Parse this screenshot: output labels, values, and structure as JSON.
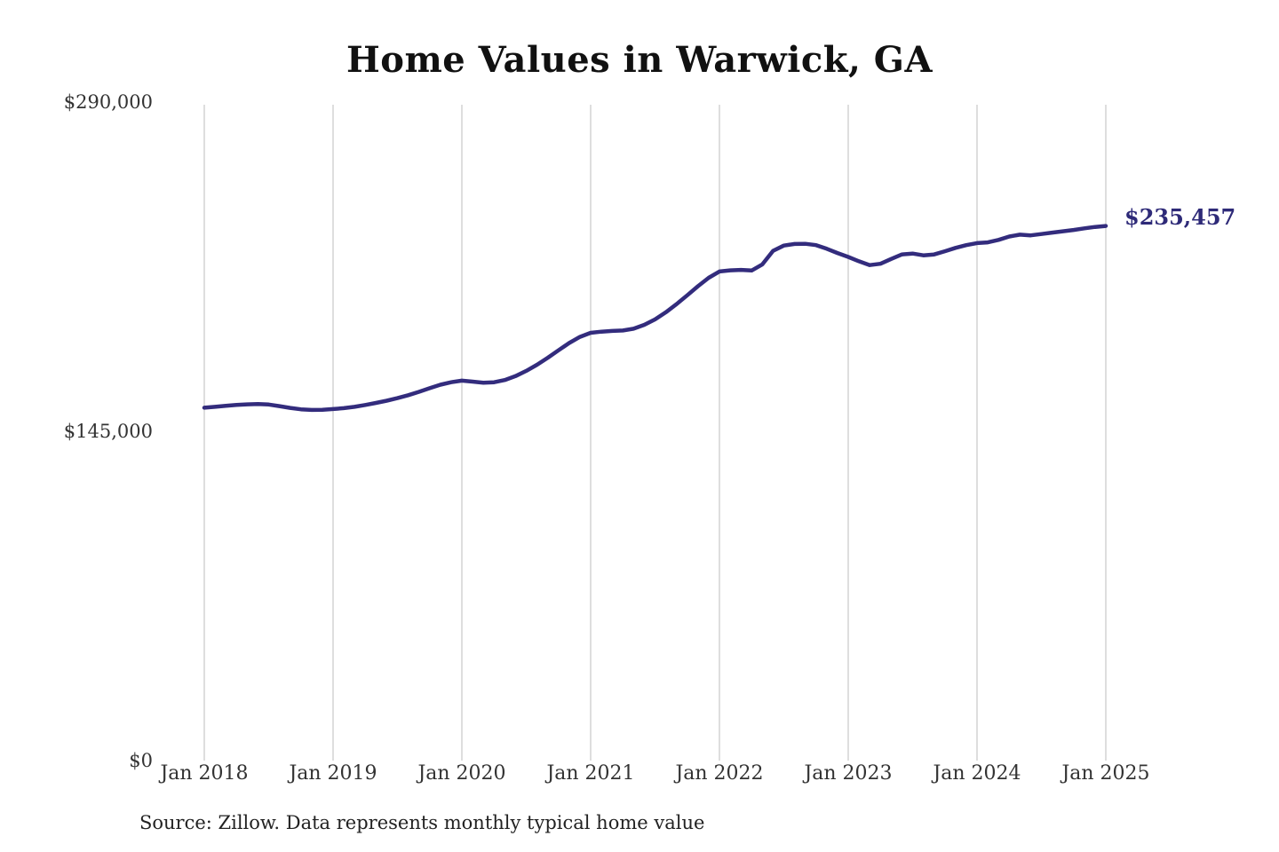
{
  "chart_data": {
    "type": "line",
    "title": "Home Values in Warwick, GA",
    "end_label": "$235,457",
    "latest_value": 235457,
    "source": "Source: Zillow. Data represents monthly typical home value",
    "x_tick_labels": [
      "Jan 2018",
      "Jan 2019",
      "Jan 2020",
      "Jan 2021",
      "Jan 2022",
      "Jan 2023",
      "Jan 2024",
      "Jan 2025"
    ],
    "y_ticks": [
      {
        "value": 0,
        "label": "$0"
      },
      {
        "value": 145000,
        "label": "$145,000"
      },
      {
        "value": 290000,
        "label": "$290,000"
      }
    ],
    "ylim": [
      0,
      290000
    ],
    "grid": "vertical-only",
    "legend_position": "none",
    "colors": {
      "line": "#332c7d",
      "end_label": "#2e2a78",
      "gridline": "#cccccc",
      "tick_text": "#333333",
      "title_text": "#111111",
      "background": "#ffffff"
    },
    "series": [
      {
        "name": "Monthly typical home value",
        "start_month": "2018-01",
        "end_month": "2025-01",
        "values": [
          155400,
          155800,
          156200,
          156600,
          156900,
          157000,
          156800,
          156100,
          155300,
          154700,
          154400,
          154500,
          154800,
          155200,
          155800,
          156600,
          157500,
          158500,
          159600,
          160900,
          162400,
          164000,
          165500,
          166600,
          167300,
          166900,
          166400,
          166600,
          167600,
          169300,
          171600,
          174300,
          177400,
          180700,
          183900,
          186600,
          188400,
          188900,
          189200,
          189400,
          190200,
          191900,
          194300,
          197400,
          201000,
          204900,
          208900,
          212600,
          215400,
          215900,
          216100,
          215800,
          218500,
          224500,
          226800,
          227500,
          227600,
          227000,
          225400,
          223500,
          221800,
          219900,
          218200,
          218800,
          220900,
          222900,
          223300,
          222500,
          222900,
          224300,
          225800,
          227000,
          227900,
          228200,
          229300,
          230800,
          231600,
          231300,
          231900,
          232500,
          233100,
          233700,
          234400,
          235000,
          235457
        ]
      }
    ]
  }
}
